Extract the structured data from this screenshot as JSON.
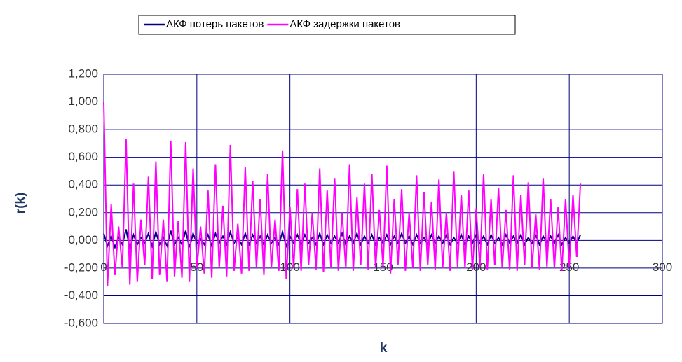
{
  "chart_data": {
    "type": "line",
    "xlabel": "k",
    "ylabel": "r(k)",
    "xlim": [
      0,
      300
    ],
    "xticks": [
      0,
      50,
      100,
      150,
      200,
      250,
      300
    ],
    "ylim": [
      -0.6,
      1.2
    ],
    "yticks": [
      {
        "value": -0.6,
        "label": "-0,600"
      },
      {
        "value": -0.4,
        "label": "-0,400"
      },
      {
        "value": -0.2,
        "label": "-0,200"
      },
      {
        "value": 0,
        "label": "0,000"
      },
      {
        "value": 0.2,
        "label": "0,200"
      },
      {
        "value": 0.4,
        "label": "0,400"
      },
      {
        "value": 0.6,
        "label": "0,600"
      },
      {
        "value": 0.8,
        "label": "0,800"
      },
      {
        "value": 1.0,
        "label": "1,000"
      },
      {
        "value": 1.2,
        "label": "1,200"
      }
    ],
    "grid": true,
    "legend": "top",
    "x": [
      0,
      2,
      4,
      6,
      8,
      10,
      12,
      14,
      16,
      18,
      20,
      22,
      24,
      26,
      28,
      30,
      32,
      34,
      36,
      38,
      40,
      42,
      44,
      46,
      48,
      50,
      52,
      54,
      56,
      58,
      60,
      62,
      64,
      66,
      68,
      70,
      72,
      74,
      76,
      78,
      80,
      82,
      84,
      86,
      88,
      90,
      92,
      94,
      96,
      98,
      100,
      102,
      104,
      106,
      108,
      110,
      112,
      114,
      116,
      118,
      120,
      122,
      124,
      126,
      128,
      130,
      132,
      134,
      136,
      138,
      140,
      142,
      144,
      146,
      148,
      150,
      152,
      154,
      156,
      158,
      160,
      162,
      164,
      166,
      168,
      170,
      172,
      174,
      176,
      178,
      180,
      182,
      184,
      186,
      188,
      190,
      192,
      194,
      196,
      198,
      200,
      202,
      204,
      206,
      208,
      210,
      212,
      214,
      216,
      218,
      220,
      222,
      224,
      226,
      228,
      230,
      232,
      234,
      236,
      238,
      240,
      242,
      244,
      246,
      248,
      250,
      252,
      254,
      256
    ],
    "series": [
      {
        "name": "АКФ потерь пакетов",
        "color": "#000080",
        "values": [
          0.05,
          -0.04,
          0.03,
          -0.05,
          0.02,
          -0.03,
          0.08,
          -0.06,
          0.04,
          -0.03,
          0.02,
          -0.02,
          0.05,
          -0.04,
          0.06,
          -0.03,
          0.02,
          -0.04,
          0.07,
          -0.03,
          0.02,
          -0.03,
          0.07,
          -0.05,
          0.05,
          -0.02,
          0.01,
          -0.03,
          0.04,
          -0.04,
          0.05,
          -0.02,
          0.03,
          -0.03,
          0.06,
          -0.02,
          0.02,
          -0.03,
          0.05,
          -0.03,
          0.04,
          -0.02,
          0.03,
          -0.03,
          0.04,
          -0.02,
          0.02,
          -0.03,
          0.06,
          -0.04,
          0.03,
          -0.02,
          0.04,
          -0.03,
          0.04,
          -0.02,
          0.02,
          -0.03,
          0.05,
          -0.03,
          0.04,
          -0.02,
          0.03,
          -0.02,
          0.05,
          -0.03,
          0.03,
          -0.02,
          0.05,
          -0.03,
          0.03,
          -0.02,
          0.04,
          -0.03,
          0.02,
          -0.02,
          0.04,
          -0.03,
          0.03,
          -0.02,
          0.05,
          -0.02,
          0.03,
          -0.03,
          0.04,
          -0.02,
          0.02,
          -0.03,
          0.04,
          -0.02,
          0.03,
          -0.02,
          0.04,
          -0.03,
          0.02,
          -0.02,
          0.04,
          -0.03,
          0.03,
          -0.02,
          0.04,
          -0.02,
          0.03,
          -0.03,
          0.04,
          -0.02,
          0.02,
          -0.03,
          0.04,
          -0.02,
          0.03,
          -0.02,
          0.04,
          -0.03,
          0.02,
          -0.02,
          0.04,
          -0.03,
          0.03,
          -0.02,
          0.03,
          -0.02,
          0.04,
          -0.03,
          0.02,
          -0.02,
          0.03,
          -0.02,
          0.04
        ]
      },
      {
        "name": "АКФ задержки пакетов",
        "color": "#ff00ff",
        "values": [
          1.0,
          -0.33,
          0.26,
          -0.25,
          0.1,
          -0.2,
          0.73,
          -0.32,
          0.41,
          -0.3,
          0.15,
          -0.18,
          0.46,
          -0.28,
          0.57,
          -0.25,
          0.15,
          -0.3,
          0.72,
          -0.26,
          0.14,
          -0.27,
          0.71,
          -0.3,
          0.52,
          -0.2,
          0.1,
          -0.24,
          0.36,
          -0.27,
          0.55,
          -0.2,
          0.25,
          -0.26,
          0.69,
          -0.22,
          0.12,
          -0.24,
          0.53,
          -0.22,
          0.43,
          -0.2,
          0.3,
          -0.25,
          0.48,
          -0.2,
          0.15,
          -0.22,
          0.65,
          -0.28,
          0.24,
          -0.2,
          0.37,
          -0.22,
          0.41,
          -0.18,
          0.2,
          -0.21,
          0.52,
          -0.23,
          0.36,
          -0.19,
          0.45,
          -0.22,
          0.2,
          -0.2,
          0.55,
          -0.22,
          0.31,
          -0.18,
          0.41,
          -0.21,
          0.48,
          -0.2,
          0.22,
          -0.19,
          0.54,
          -0.24,
          0.3,
          -0.18,
          0.37,
          -0.22,
          0.2,
          -0.2,
          0.47,
          -0.22,
          0.35,
          -0.18,
          0.28,
          -0.21,
          0.44,
          -0.2,
          0.2,
          -0.22,
          0.5,
          -0.19,
          0.33,
          -0.2,
          0.36,
          -0.21,
          0.23,
          -0.19,
          0.48,
          -0.21,
          0.3,
          -0.18,
          0.38,
          -0.2,
          0.22,
          -0.21,
          0.47,
          -0.22,
          0.33,
          -0.18,
          0.42,
          -0.2,
          0.19,
          -0.21,
          0.45,
          -0.19,
          0.3,
          -0.2,
          0.24,
          -0.22,
          0.3,
          -0.19,
          0.33,
          -0.12,
          0.41
        ]
      }
    ]
  }
}
